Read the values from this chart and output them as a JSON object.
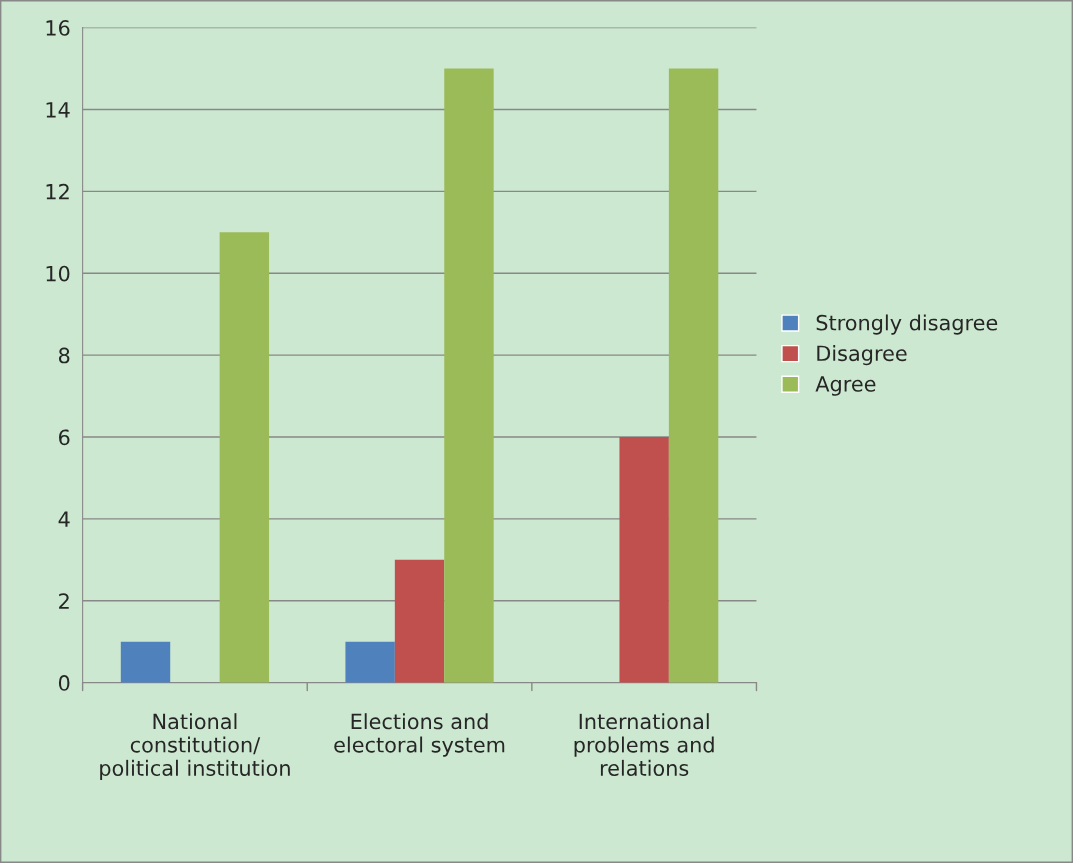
{
  "chart_data": {
    "type": "bar",
    "categories": [
      "National\nconstitution/\npolitical institution",
      "Elections and\nelectoral system",
      "International\nproblems and\nrelations"
    ],
    "series": [
      {
        "name": "Strongly disagree",
        "color": "#4f81bd",
        "values": [
          1,
          1,
          0
        ]
      },
      {
        "name": "Disagree",
        "color": "#c0504d",
        "values": [
          0,
          3,
          6
        ]
      },
      {
        "name": "Agree",
        "color": "#9bbb59",
        "values": [
          11,
          15,
          15
        ]
      }
    ],
    "ylim": [
      0,
      16
    ],
    "yticks": [
      0,
      2,
      4,
      6,
      8,
      10,
      12,
      14,
      16
    ],
    "grid": "y",
    "legend": "right"
  }
}
